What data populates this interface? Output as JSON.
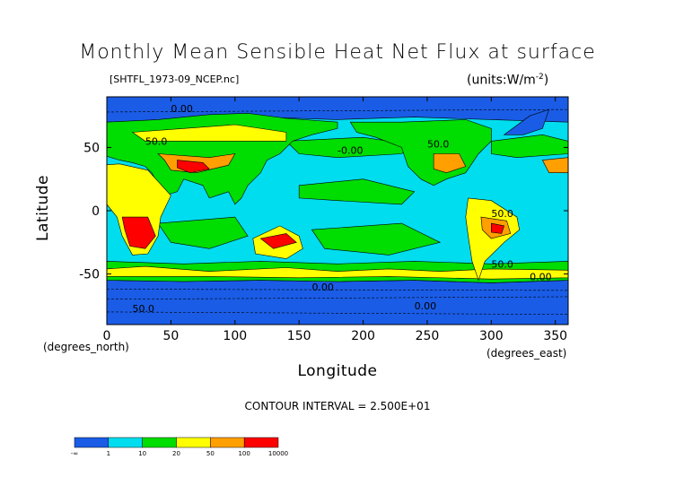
{
  "chart_data": {
    "type": "heatmap",
    "title": "Monthly Mean Sensible Heat Net Flux at surface",
    "subtitle": "[SHTFL_1973-09_NCEP.nc]",
    "units": "(units:W/m^2)",
    "xlabel": "Longitude",
    "ylabel": "Latitude",
    "x_unit_note": "(degrees_east)",
    "y_unit_note": "(degrees_north)",
    "xlim": [
      0,
      360
    ],
    "ylim": [
      -90,
      90
    ],
    "x_ticks": [
      "0",
      "50",
      "100",
      "150",
      "200",
      "250",
      "300",
      "350"
    ],
    "y_ticks": [
      "50",
      "0",
      "-50"
    ],
    "contour_interval": "CONTOUR INTERVAL = 2.500E+01",
    "contour_labels": [
      "0.00",
      "50.0",
      "-0.00",
      "50.0",
      "0.00",
      "50.0",
      "0.00",
      "50.0",
      "50.0",
      "0.00"
    ],
    "legend": {
      "labels": [
        "-∞",
        "1",
        "10",
        "20",
        "50",
        "100",
        "10000"
      ],
      "colors": [
        "#1a5ce6",
        "#00ddee",
        "#00dd00",
        "#ffff00",
        "#ff9f00",
        "#ff0000"
      ]
    },
    "ocean_color": "#00ddee",
    "land_color": "#00dd00"
  }
}
